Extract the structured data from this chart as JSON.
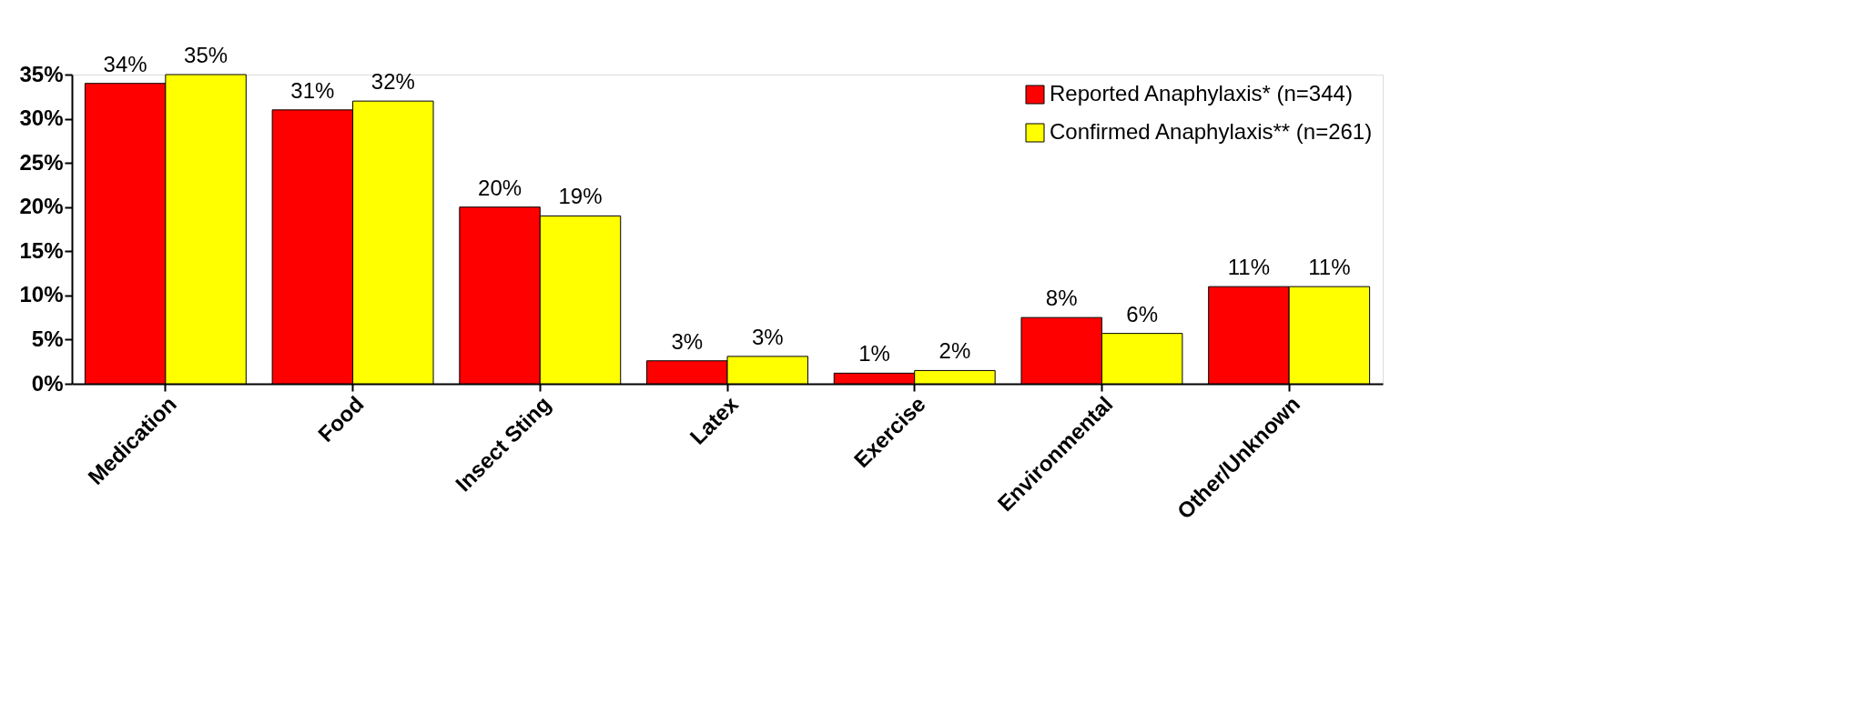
{
  "chart_data": {
    "type": "bar",
    "categories": [
      "Medication",
      "Food",
      "Insect Sting",
      "Latex",
      "Exercise",
      "Environmental",
      "Other/Unknown"
    ],
    "series": [
      {
        "name": "Reported Anaphylaxis* (n=344)",
        "color": "#ff0000",
        "values": [
          34,
          31,
          20,
          2.6,
          1.2,
          7.5,
          11
        ],
        "value_labels": [
          "34%",
          "31%",
          "20%",
          "3%",
          "1%",
          "8%",
          "11%"
        ]
      },
      {
        "name": "Confirmed Anaphylaxis** (n=261)",
        "color": "#ffff00",
        "values": [
          35,
          32,
          19,
          3.1,
          1.5,
          5.7,
          11
        ],
        "value_labels": [
          "35%",
          "32%",
          "19%",
          "3%",
          "2%",
          "6%",
          "11%"
        ]
      }
    ],
    "ylim": [
      0,
      35
    ],
    "yticks": [
      {
        "value": 0,
        "label": "0%"
      },
      {
        "value": 5,
        "label": "5%"
      },
      {
        "value": 10,
        "label": "10%"
      },
      {
        "value": 15,
        "label": "15%"
      },
      {
        "value": 20,
        "label": "20%"
      },
      {
        "value": 25,
        "label": "25%"
      },
      {
        "value": 30,
        "label": "30%"
      },
      {
        "value": 35,
        "label": "35%"
      }
    ],
    "grid": false,
    "legend": "top right"
  }
}
